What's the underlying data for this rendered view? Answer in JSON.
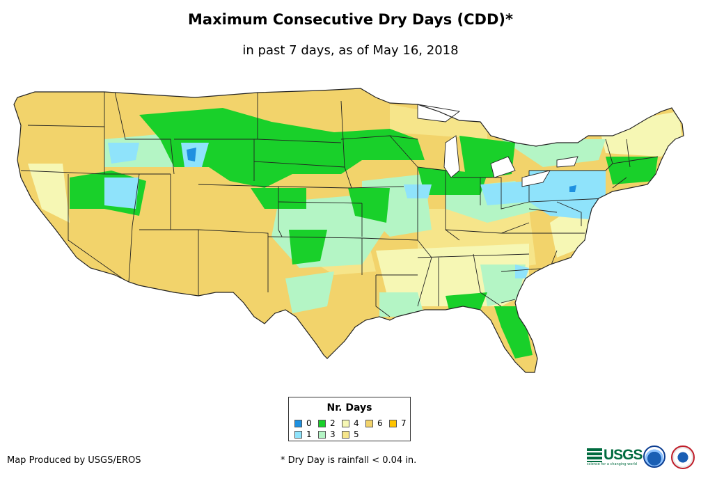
{
  "title": "Maximum Consecutive Dry Days (CDD)*",
  "subtitle": "in past 7 days, as of May 16, 2018",
  "legend": {
    "title": "Nr. Days",
    "items": [
      {
        "label": "0",
        "color": "#1e90e0"
      },
      {
        "label": "1",
        "color": "#8fe3fb"
      },
      {
        "label": "2",
        "color": "#19d02a"
      },
      {
        "label": "3",
        "color": "#b4f5c5"
      },
      {
        "label": "4",
        "color": "#f6f7b4"
      },
      {
        "label": "5",
        "color": "#f6e58a"
      },
      {
        "label": "6",
        "color": "#f2d36b"
      },
      {
        "label": "7",
        "color": "#ffc400"
      }
    ]
  },
  "credit": "Map Produced by USGS/EROS",
  "footnote": "* Dry Day is rainfall < 0.04 in.",
  "logos": {
    "usgs": "USGS",
    "usgs_tagline": "science for a changing world",
    "noaa": "noaa",
    "nws": "National Weather Service"
  }
}
